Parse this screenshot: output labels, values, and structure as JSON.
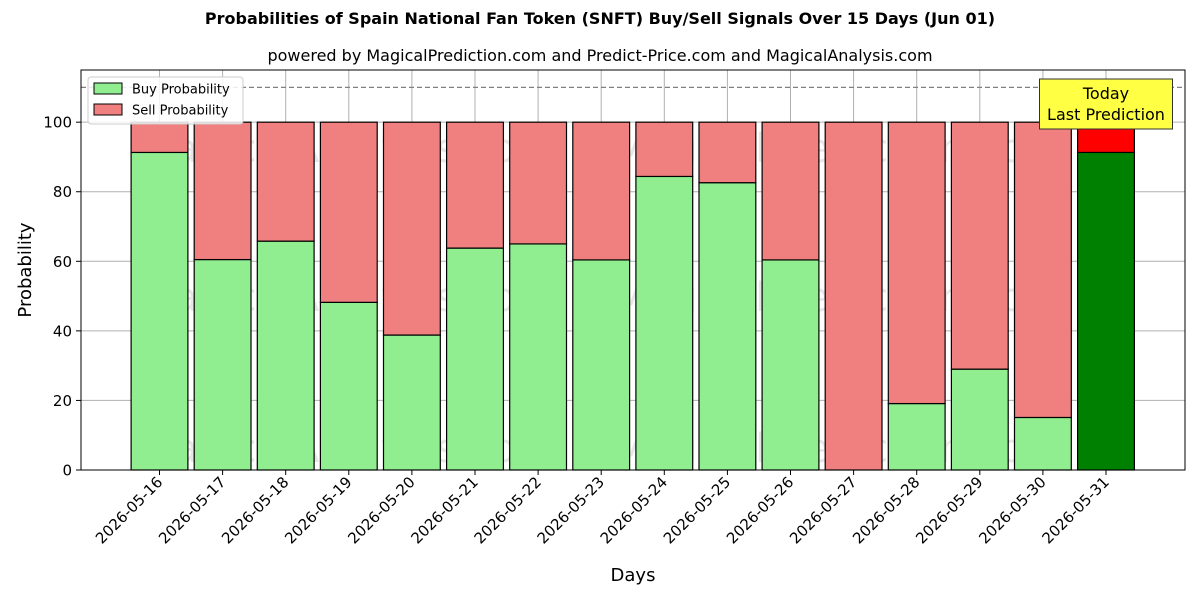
{
  "chart_data": {
    "type": "bar",
    "stacked": true,
    "title": "Probabilities of Spain National Fan Token (SNFT) Buy/Sell Signals Over 15 Days (Jun 01)",
    "subtitle": "powered by MagicalPrediction.com and Predict-Price.com and MagicalAnalysis.com",
    "xlabel": "Days",
    "ylabel": "Probability",
    "ylim": [
      0,
      115
    ],
    "yticks": [
      0,
      20,
      40,
      60,
      80,
      100
    ],
    "grid": true,
    "legend_position": "top-left",
    "reference_line": 110,
    "categories": [
      "2026-05-16",
      "2026-05-17",
      "2026-05-18",
      "2026-05-19",
      "2026-05-20",
      "2026-05-21",
      "2026-05-22",
      "2026-05-23",
      "2026-05-24",
      "2026-05-25",
      "2026-05-26",
      "2026-05-27",
      "2026-05-28",
      "2026-05-29",
      "2026-05-30",
      "2026-05-31"
    ],
    "series": [
      {
        "name": "Buy Probability",
        "color": "#90ee90",
        "values": [
          91.3,
          60.5,
          65.8,
          48.2,
          38.8,
          63.8,
          65.0,
          60.4,
          84.4,
          82.6,
          60.4,
          0,
          19.1,
          29.0,
          15.1,
          91.3
        ]
      },
      {
        "name": "Sell Probability",
        "color": "#f08080",
        "values": [
          8.7,
          39.5,
          34.2,
          51.8,
          61.2,
          36.2,
          35.0,
          39.6,
          15.6,
          17.4,
          39.6,
          100,
          80.9,
          71.0,
          84.9,
          8.7
        ]
      }
    ],
    "highlight": {
      "category": "2026-05-31",
      "buy_color": "#008000",
      "sell_color": "#ff0000",
      "annotation_lines": [
        "Today",
        "Last Prediction"
      ],
      "annotation_bg": "#ffff44"
    },
    "watermarks": [
      "MagicalAnalysis.com",
      "MagicalPrediction.com"
    ]
  }
}
